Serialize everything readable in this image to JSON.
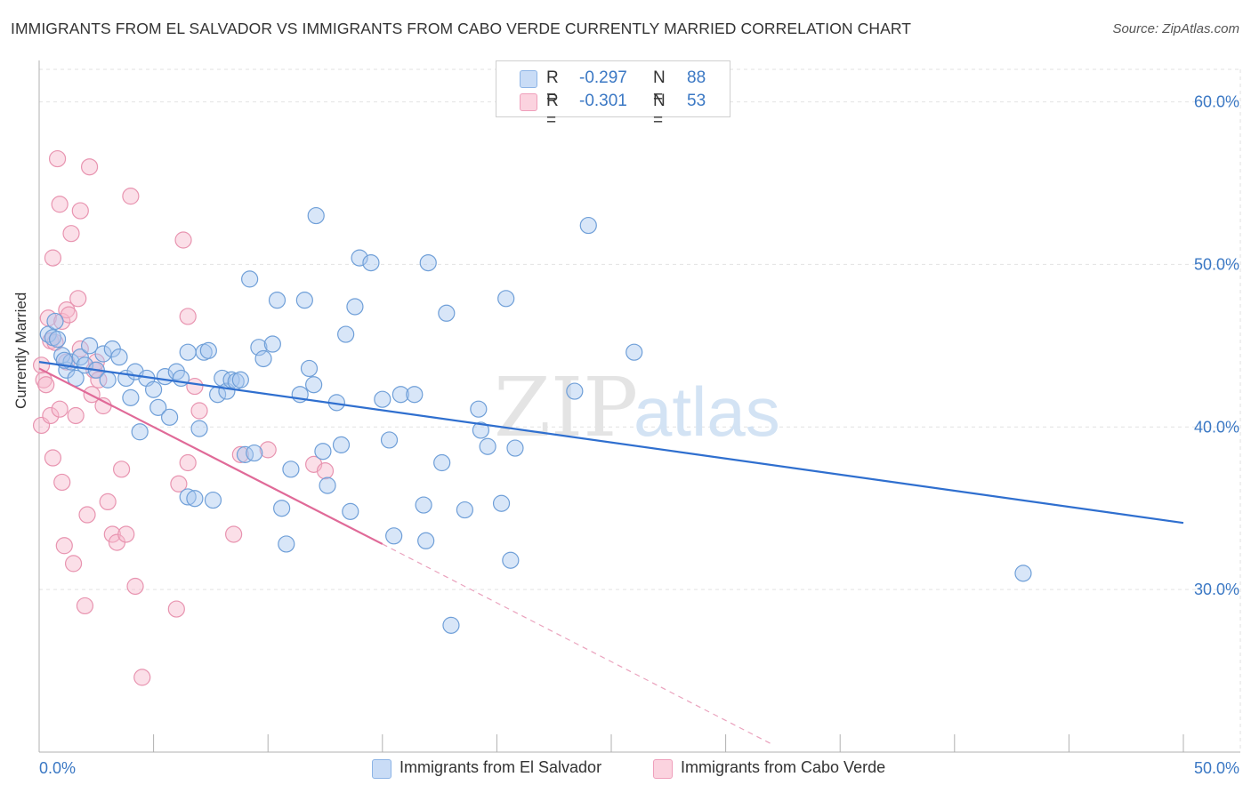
{
  "title": "IMMIGRANTS FROM EL SALVADOR VS IMMIGRANTS FROM CABO VERDE CURRENTLY MARRIED CORRELATION CHART",
  "source": "Source: ZipAtlas.com",
  "watermark": {
    "zip": "ZIP",
    "atlas": "atlas"
  },
  "stats": [
    {
      "r_label": "R =",
      "r_value": "-0.297",
      "n_label": "N =",
      "n_value": "88",
      "color": "#a9c8f0"
    },
    {
      "r_label": "R =",
      "r_value": "-0.301",
      "n_label": "N =",
      "n_value": "53",
      "color": "#f7b8cb"
    }
  ],
  "legend": [
    {
      "label": "Immigrants from El Salvador",
      "color": "#a9c8f0"
    },
    {
      "label": "Immigrants from Cabo Verde",
      "color": "#f7b8cb"
    }
  ],
  "colors": {
    "blue_line": "#2f6fcf",
    "pink_line": "#e06a98",
    "tick_label": "#3b78c4",
    "grid": "#e2e2e2"
  },
  "chart_data": {
    "type": "scatter",
    "title": "IMMIGRANTS FROM EL SALVADOR VS IMMIGRANTS FROM CABO VERDE CURRENTLY MARRIED CORRELATION CHART",
    "xlabel": "",
    "ylabel": "Currently Married",
    "xlim": [
      0,
      50
    ],
    "ylim": [
      20,
      62
    ],
    "x_tick_labels": [
      "0.0%",
      "50.0%"
    ],
    "y_ticks": [
      30,
      40,
      50,
      60
    ],
    "y_tick_labels": [
      "30.0%",
      "40.0%",
      "50.0%",
      "60.0%"
    ],
    "grid": true,
    "legend_position": "bottom",
    "series": [
      {
        "name": "Immigrants from El Salvador",
        "color": "#a9c8f0",
        "stroke": "#6f9fd8",
        "points": [
          [
            0.4,
            45.7
          ],
          [
            0.6,
            45.5
          ],
          [
            0.8,
            45.4
          ],
          [
            1.0,
            44.4
          ],
          [
            1.2,
            43.5
          ],
          [
            1.4,
            44.0
          ],
          [
            1.6,
            43.0
          ],
          [
            1.8,
            44.3
          ],
          [
            2.0,
            43.8
          ],
          [
            2.2,
            45.0
          ],
          [
            2.5,
            43.5
          ],
          [
            2.8,
            44.5
          ],
          [
            3.2,
            44.8
          ],
          [
            3.5,
            44.3
          ],
          [
            3.8,
            43.0
          ],
          [
            4.0,
            41.8
          ],
          [
            4.2,
            43.4
          ],
          [
            4.4,
            39.7
          ],
          [
            4.7,
            43.0
          ],
          [
            5.0,
            42.3
          ],
          [
            5.2,
            41.2
          ],
          [
            5.5,
            43.1
          ],
          [
            5.7,
            40.6
          ],
          [
            6.0,
            43.4
          ],
          [
            6.2,
            43.0
          ],
          [
            6.5,
            35.7
          ],
          [
            6.8,
            35.6
          ],
          [
            6.5,
            44.6
          ],
          [
            7.0,
            39.9
          ],
          [
            7.2,
            44.6
          ],
          [
            7.4,
            44.7
          ],
          [
            7.6,
            35.5
          ],
          [
            7.8,
            42.0
          ],
          [
            8.0,
            43.0
          ],
          [
            8.2,
            42.2
          ],
          [
            8.4,
            42.9
          ],
          [
            8.6,
            42.8
          ],
          [
            8.8,
            42.9
          ],
          [
            9.0,
            38.3
          ],
          [
            9.2,
            49.1
          ],
          [
            9.4,
            38.4
          ],
          [
            9.6,
            44.9
          ],
          [
            9.8,
            44.2
          ],
          [
            10.2,
            45.1
          ],
          [
            10.4,
            47.8
          ],
          [
            10.6,
            35.0
          ],
          [
            10.8,
            32.8
          ],
          [
            11.0,
            37.4
          ],
          [
            11.4,
            42.0
          ],
          [
            11.6,
            47.8
          ],
          [
            11.8,
            43.6
          ],
          [
            12.0,
            42.6
          ],
          [
            12.1,
            53.0
          ],
          [
            12.4,
            38.5
          ],
          [
            12.6,
            36.4
          ],
          [
            13.0,
            41.5
          ],
          [
            13.2,
            38.9
          ],
          [
            13.4,
            45.7
          ],
          [
            13.6,
            34.8
          ],
          [
            13.8,
            47.4
          ],
          [
            14.0,
            50.4
          ],
          [
            14.5,
            50.1
          ],
          [
            15.0,
            41.7
          ],
          [
            15.5,
            33.3
          ],
          [
            15.3,
            39.2
          ],
          [
            15.8,
            42.0
          ],
          [
            16.4,
            42.0
          ],
          [
            16.8,
            35.2
          ],
          [
            16.9,
            33.0
          ],
          [
            17.0,
            50.1
          ],
          [
            17.6,
            37.8
          ],
          [
            17.8,
            47.0
          ],
          [
            18.0,
            27.8
          ],
          [
            18.6,
            34.9
          ],
          [
            19.2,
            41.1
          ],
          [
            19.3,
            39.8
          ],
          [
            19.6,
            38.8
          ],
          [
            20.2,
            35.3
          ],
          [
            20.4,
            47.9
          ],
          [
            20.6,
            31.8
          ],
          [
            20.8,
            38.7
          ],
          [
            23.4,
            42.2
          ],
          [
            24.0,
            52.4
          ],
          [
            26.0,
            44.6
          ],
          [
            43.0,
            31.0
          ],
          [
            0.7,
            46.5
          ],
          [
            1.1,
            44.1
          ],
          [
            3.0,
            42.9
          ]
        ],
        "trend": {
          "x0": 0,
          "y0": 44.0,
          "x1": 50,
          "y1": 34.1
        }
      },
      {
        "name": "Immigrants from Cabo Verde",
        "color": "#f7b8cb",
        "stroke": "#e894b0",
        "points": [
          [
            0.1,
            43.8
          ],
          [
            0.1,
            40.1
          ],
          [
            0.2,
            42.9
          ],
          [
            0.3,
            42.6
          ],
          [
            0.4,
            46.7
          ],
          [
            0.5,
            45.3
          ],
          [
            0.5,
            40.7
          ],
          [
            0.6,
            38.1
          ],
          [
            0.6,
            50.4
          ],
          [
            0.7,
            45.2
          ],
          [
            0.8,
            56.5
          ],
          [
            0.9,
            53.7
          ],
          [
            0.9,
            41.1
          ],
          [
            1.0,
            36.6
          ],
          [
            1.0,
            46.5
          ],
          [
            1.1,
            32.7
          ],
          [
            1.2,
            47.2
          ],
          [
            1.2,
            44.0
          ],
          [
            1.3,
            46.9
          ],
          [
            1.4,
            51.9
          ],
          [
            1.5,
            31.6
          ],
          [
            1.6,
            40.7
          ],
          [
            1.7,
            47.9
          ],
          [
            1.8,
            53.3
          ],
          [
            1.8,
            44.8
          ],
          [
            2.0,
            29.0
          ],
          [
            2.1,
            34.6
          ],
          [
            2.2,
            56.0
          ],
          [
            2.3,
            42.0
          ],
          [
            2.4,
            43.5
          ],
          [
            2.5,
            44.0
          ],
          [
            2.6,
            42.9
          ],
          [
            2.8,
            41.3
          ],
          [
            3.0,
            35.4
          ],
          [
            3.2,
            33.4
          ],
          [
            3.4,
            32.9
          ],
          [
            3.6,
            37.4
          ],
          [
            3.8,
            33.4
          ],
          [
            4.0,
            54.2
          ],
          [
            4.2,
            30.2
          ],
          [
            4.5,
            24.6
          ],
          [
            6.0,
            28.8
          ],
          [
            6.1,
            36.5
          ],
          [
            6.3,
            51.5
          ],
          [
            6.5,
            46.8
          ],
          [
            6.5,
            37.8
          ],
          [
            6.8,
            42.5
          ],
          [
            7.0,
            41.0
          ],
          [
            8.5,
            33.4
          ],
          [
            8.8,
            38.3
          ],
          [
            10.0,
            38.6
          ],
          [
            12.0,
            37.7
          ],
          [
            12.5,
            37.3
          ]
        ],
        "trend": {
          "x0": 0,
          "y0": 43.6,
          "x1": 15,
          "y1": 32.8
        },
        "trend_extension": {
          "x0": 15,
          "y0": 32.8,
          "x1": 32,
          "y1": 20.5
        }
      }
    ]
  }
}
